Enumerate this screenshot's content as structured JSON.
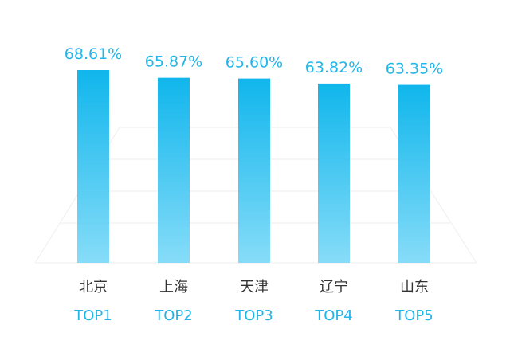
{
  "chart_data": {
    "type": "bar",
    "categories": [
      "北京",
      "上海",
      "天津",
      "辽宁",
      "山东"
    ],
    "ranks": [
      "TOP1",
      "TOP2",
      "TOP3",
      "TOP4",
      "TOP5"
    ],
    "values": [
      68.61,
      65.87,
      65.6,
      63.82,
      63.35
    ],
    "value_labels": [
      "68.61%",
      "65.87%",
      "65.60%",
      "63.82%",
      "63.35%"
    ],
    "title": "",
    "xlabel": "",
    "ylabel": "",
    "ylim": [
      0,
      68.61
    ],
    "grid": false,
    "legend": "none",
    "colors": {
      "bar_top": "#10b6ec",
      "bar_bottom": "#86dcf8",
      "value_text": "#21b5e9",
      "rank_text": "#21b5e9",
      "category_text": "#333333"
    }
  }
}
